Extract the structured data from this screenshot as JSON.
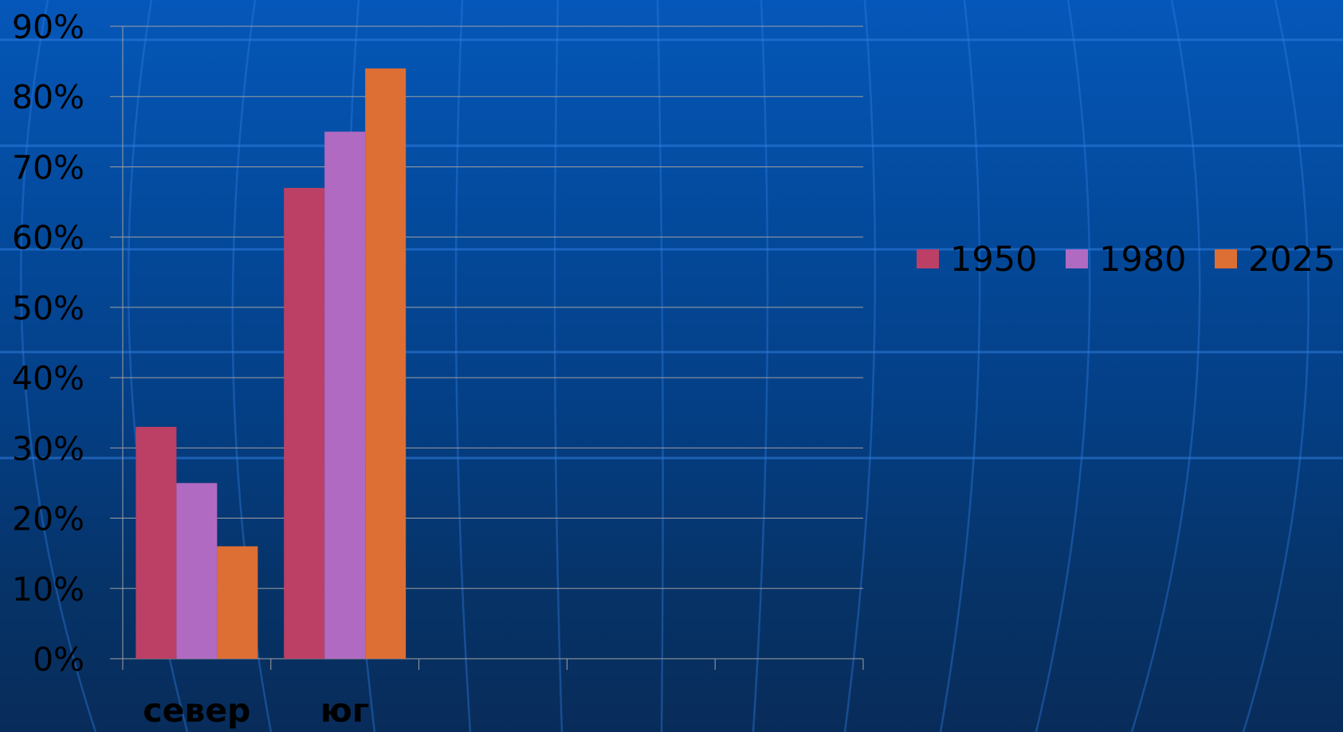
{
  "chart_data": {
    "type": "bar",
    "categories": [
      "север",
      "юг",
      "",
      "",
      ""
    ],
    "series": [
      {
        "name": "1950",
        "values": [
          33,
          67,
          null,
          null,
          null
        ],
        "color": "#bc3f66"
      },
      {
        "name": "1980",
        "values": [
          25,
          75,
          null,
          null,
          null
        ],
        "color": "#b16ac1"
      },
      {
        "name": "2025",
        "values": [
          16,
          84,
          null,
          null,
          null
        ],
        "color": "#dd6e34"
      }
    ],
    "ylim": [
      0,
      90
    ],
    "yticks": [
      "0%",
      "10%",
      "20%",
      "30%",
      "40%",
      "50%",
      "60%",
      "70%",
      "80%",
      "90%"
    ],
    "title": "",
    "xlabel": "",
    "ylabel": "",
    "grid": true,
    "legend_position": "right",
    "gridline_color": "#a0a0a0"
  }
}
